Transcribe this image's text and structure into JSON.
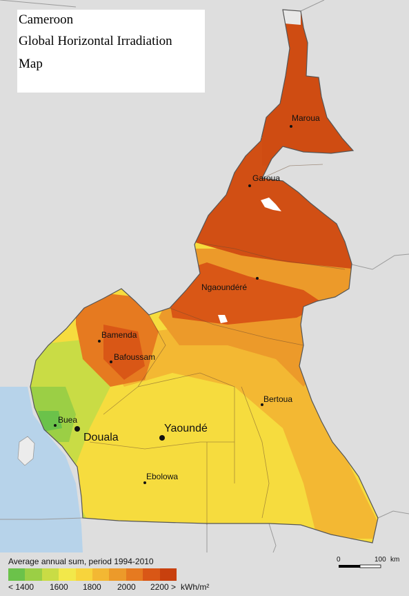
{
  "title": {
    "line1": "Cameroon",
    "line2": "Global Horizontal Irradiation",
    "line3": "Map"
  },
  "cities": [
    {
      "id": "maroua",
      "name": "Maroua"
    },
    {
      "id": "garoua",
      "name": "Garoua"
    },
    {
      "id": "ngaoundere",
      "name": "Ngaoundéré"
    },
    {
      "id": "bamenda",
      "name": "Bamenda"
    },
    {
      "id": "bafoussam",
      "name": "Bafoussam"
    },
    {
      "id": "bertoua",
      "name": "Bertoua"
    },
    {
      "id": "buea",
      "name": "Buea"
    },
    {
      "id": "douala",
      "name": "Douala"
    },
    {
      "id": "yaounde",
      "name": "Yaoundé"
    },
    {
      "id": "ebolowa",
      "name": "Ebolowa"
    }
  ],
  "legend": {
    "title": "Average annual sum, period 1994-2010",
    "colors": [
      "#6bc24a",
      "#9bcf45",
      "#c9dc45",
      "#f2e84a",
      "#f7d43c",
      "#f3b833",
      "#ec9a2a",
      "#e67a20",
      "#d95716",
      "#c8400e"
    ],
    "ticks": [
      "< 1400",
      "1600",
      "1800",
      "2000",
      "2200 >"
    ],
    "unit": "kWh/m²"
  },
  "scale": {
    "zero": "0",
    "end": "100",
    "unit": "km"
  },
  "colors": {
    "background_land": "#dedede",
    "sea": "#b7d3ea",
    "border": "#555555"
  }
}
